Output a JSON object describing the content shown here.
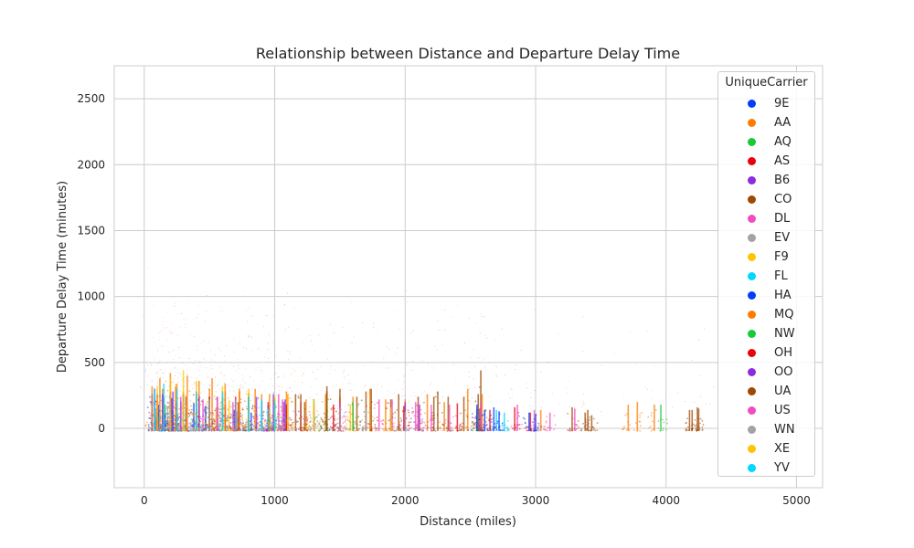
{
  "chart_data": {
    "type": "scatter",
    "title": "Relationship between Distance and Departure Delay Time",
    "xlabel": "Distance (miles)",
    "ylabel": "Departure Delay Time (minutes)",
    "xlim": [
      -230,
      5200
    ],
    "ylim": [
      -450,
      2750
    ],
    "xticks": [
      0,
      1000,
      2000,
      3000,
      4000,
      5000
    ],
    "yticks": [
      0,
      500,
      1000,
      1500,
      2000,
      2500
    ],
    "grid": true,
    "legend_title": "UniqueCarrier",
    "legend_position": "upper right",
    "series": [
      {
        "name": "9E",
        "color": "#023eff",
        "spikes": [
          [
            60,
            260
          ],
          [
            110,
            180
          ],
          [
            150,
            240
          ],
          [
            210,
            230
          ],
          [
            280,
            200
          ],
          [
            380,
            190
          ],
          [
            470,
            170
          ],
          [
            560,
            160
          ],
          [
            690,
            140
          ],
          [
            820,
            120
          ],
          [
            950,
            100
          ]
        ]
      },
      {
        "name": "AA",
        "color": "#ff7c00",
        "spikes": [
          [
            140,
            300
          ],
          [
            240,
            320
          ],
          [
            300,
            280
          ],
          [
            420,
            260
          ],
          [
            500,
            300
          ],
          [
            620,
            280
          ],
          [
            730,
            280
          ],
          [
            800,
            270
          ],
          [
            900,
            260
          ],
          [
            1000,
            240
          ],
          [
            1090,
            280
          ],
          [
            1240,
            220
          ],
          [
            1390,
            260
          ],
          [
            1500,
            240
          ],
          [
            1600,
            240
          ],
          [
            1730,
            300
          ],
          [
            1850,
            220
          ],
          [
            2000,
            220
          ],
          [
            2170,
            260
          ],
          [
            2300,
            200
          ],
          [
            2480,
            300
          ],
          [
            2590,
            260
          ],
          [
            3040,
            140
          ],
          [
            3710,
            180
          ],
          [
            3780,
            200
          ],
          [
            3910,
            180
          ]
        ]
      },
      {
        "name": "AQ",
        "color": "#1ac938",
        "spikes": [
          [
            85,
            150
          ],
          [
            160,
            180
          ],
          [
            220,
            130
          ],
          [
            2550,
            140
          ],
          [
            3960,
            180
          ]
        ]
      },
      {
        "name": "AS",
        "color": "#e8000b",
        "spikes": [
          [
            250,
            200
          ],
          [
            620,
            180
          ],
          [
            950,
            200
          ],
          [
            1090,
            180
          ],
          [
            1450,
            180
          ],
          [
            1990,
            170
          ],
          [
            2400,
            190
          ],
          [
            2650,
            140
          ],
          [
            2840,
            160
          ],
          [
            2960,
            120
          ]
        ]
      },
      {
        "name": "B6",
        "color": "#8b2be2",
        "spikes": [
          [
            200,
            160
          ],
          [
            400,
            180
          ],
          [
            560,
            160
          ],
          [
            950,
            170
          ],
          [
            1070,
            200
          ],
          [
            1400,
            150
          ],
          [
            2000,
            200
          ],
          [
            2110,
            180
          ],
          [
            2570,
            150
          ]
        ]
      },
      {
        "name": "CO",
        "color": "#9f4800",
        "spikes": [
          [
            200,
            220
          ],
          [
            320,
            240
          ],
          [
            600,
            240
          ],
          [
            720,
            200
          ],
          [
            1000,
            220
          ],
          [
            1160,
            260
          ],
          [
            1230,
            200
          ],
          [
            1400,
            280
          ],
          [
            1630,
            240
          ],
          [
            1740,
            300
          ],
          [
            1890,
            220
          ],
          [
            2220,
            240
          ],
          [
            2330,
            240
          ],
          [
            2580,
            440
          ],
          [
            3280,
            160
          ],
          [
            3380,
            120
          ],
          [
            3430,
            100
          ],
          [
            4200,
            140
          ],
          [
            4250,
            150
          ]
        ]
      },
      {
        "name": "DL",
        "color": "#f14cc1",
        "spikes": [
          [
            80,
            240
          ],
          [
            150,
            220
          ],
          [
            280,
            240
          ],
          [
            450,
            220
          ],
          [
            680,
            200
          ],
          [
            800,
            220
          ],
          [
            1060,
            220
          ],
          [
            1200,
            200
          ],
          [
            1500,
            200
          ],
          [
            1900,
            220
          ],
          [
            2080,
            200
          ],
          [
            2340,
            180
          ],
          [
            2580,
            200
          ],
          [
            2860,
            180
          ],
          [
            2990,
            140
          ],
          [
            3110,
            120
          ],
          [
            3300,
            150
          ]
        ]
      },
      {
        "name": "EV",
        "color": "#a3a3a3",
        "spikes": [
          [
            100,
            140
          ],
          [
            180,
            160
          ],
          [
            300,
            150
          ],
          [
            420,
            140
          ],
          [
            560,
            140
          ],
          [
            710,
            130
          ]
        ]
      },
      {
        "name": "F9",
        "color": "#ffc400",
        "spikes": [
          [
            400,
            180
          ],
          [
            550,
            160
          ],
          [
            650,
            200
          ],
          [
            860,
            160
          ],
          [
            1000,
            180
          ],
          [
            1300,
            160
          ],
          [
            1580,
            180
          ],
          [
            1890,
            160
          ]
        ]
      },
      {
        "name": "FL",
        "color": "#00d7ff",
        "spikes": [
          [
            200,
            170
          ],
          [
            400,
            160
          ],
          [
            600,
            180
          ],
          [
            700,
            150
          ],
          [
            950,
            150
          ],
          [
            1000,
            160
          ],
          [
            2700,
            140
          ],
          [
            2760,
            120
          ]
        ]
      },
      {
        "name": "HA",
        "color": "#023eff",
        "spikes": [
          [
            100,
            120
          ],
          [
            160,
            100
          ],
          [
            2550,
            180
          ],
          [
            2610,
            140
          ],
          [
            2680,
            160
          ],
          [
            2720,
            130
          ],
          [
            2950,
            120
          ],
          [
            3000,
            110
          ]
        ]
      },
      {
        "name": "MQ",
        "color": "#ff7c00",
        "spikes": [
          [
            60,
            320
          ],
          [
            120,
            380
          ],
          [
            200,
            420
          ],
          [
            250,
            340
          ],
          [
            330,
            400
          ],
          [
            420,
            360
          ],
          [
            520,
            380
          ],
          [
            620,
            340
          ],
          [
            730,
            300
          ],
          [
            850,
            300
          ],
          [
            960,
            260
          ],
          [
            1100,
            260
          ]
        ]
      },
      {
        "name": "NW",
        "color": "#1ac938",
        "spikes": [
          [
            150,
            220
          ],
          [
            300,
            260
          ],
          [
            500,
            240
          ],
          [
            800,
            220
          ],
          [
            1000,
            220
          ],
          [
            1300,
            220
          ],
          [
            1400,
            240
          ],
          [
            1600,
            200
          ]
        ]
      },
      {
        "name": "OH",
        "color": "#e8000b",
        "spikes": [
          [
            100,
            260
          ],
          [
            200,
            280
          ],
          [
            400,
            260
          ],
          [
            500,
            240
          ],
          [
            700,
            240
          ],
          [
            900,
            200
          ]
        ]
      },
      {
        "name": "OO",
        "color": "#8b2be2",
        "spikes": [
          [
            80,
            300
          ],
          [
            140,
            260
          ],
          [
            220,
            280
          ],
          [
            300,
            260
          ],
          [
            420,
            240
          ],
          [
            560,
            240
          ],
          [
            700,
            220
          ],
          [
            860,
            240
          ],
          [
            990,
            260
          ],
          [
            1080,
            220
          ]
        ]
      },
      {
        "name": "UA",
        "color": "#9f4800",
        "spikes": [
          [
            200,
            200
          ],
          [
            500,
            220
          ],
          [
            800,
            240
          ],
          [
            1200,
            260
          ],
          [
            1400,
            320
          ],
          [
            1500,
            300
          ],
          [
            1700,
            280
          ],
          [
            1950,
            260
          ],
          [
            2100,
            240
          ],
          [
            2250,
            280
          ],
          [
            2450,
            240
          ],
          [
            2560,
            260
          ],
          [
            3400,
            140
          ],
          [
            4180,
            140
          ],
          [
            4240,
            160
          ]
        ]
      },
      {
        "name": "US",
        "color": "#f14cc1",
        "spikes": [
          [
            100,
            220
          ],
          [
            200,
            220
          ],
          [
            400,
            200
          ],
          [
            560,
            220
          ],
          [
            800,
            200
          ],
          [
            900,
            200
          ],
          [
            1030,
            260
          ],
          [
            1300,
            180
          ],
          [
            1500,
            200
          ],
          [
            1800,
            220
          ],
          [
            2100,
            200
          ],
          [
            2200,
            180
          ]
        ]
      },
      {
        "name": "WN",
        "color": "#a3a3a3",
        "spikes": [
          [
            150,
            180
          ],
          [
            300,
            200
          ],
          [
            400,
            240
          ],
          [
            500,
            220
          ],
          [
            700,
            220
          ],
          [
            900,
            200
          ],
          [
            1100,
            160
          ],
          [
            1300,
            180
          ],
          [
            1500,
            160
          ],
          [
            1700,
            150
          ],
          [
            2000,
            130
          ]
        ]
      },
      {
        "name": "XE",
        "color": "#ffc400",
        "spikes": [
          [
            100,
            320
          ],
          [
            200,
            380
          ],
          [
            300,
            440
          ],
          [
            400,
            360
          ],
          [
            600,
            320
          ],
          [
            800,
            300
          ],
          [
            1000,
            240
          ],
          [
            1100,
            260
          ],
          [
            1300,
            220
          ]
        ]
      },
      {
        "name": "YV",
        "color": "#00d7ff",
        "spikes": [
          [
            80,
            300
          ],
          [
            150,
            340
          ],
          [
            250,
            300
          ],
          [
            400,
            280
          ],
          [
            600,
            280
          ],
          [
            800,
            240
          ],
          [
            900,
            220
          ],
          [
            1000,
            200
          ]
        ]
      }
    ]
  }
}
